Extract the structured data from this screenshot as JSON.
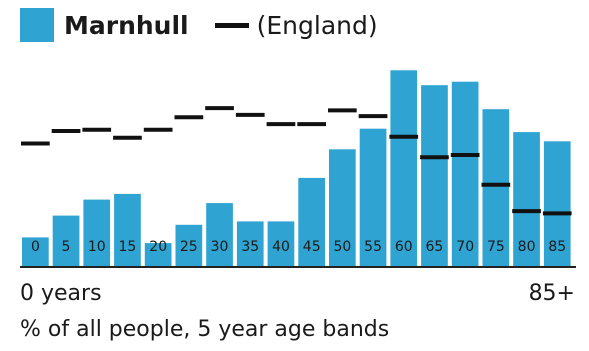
{
  "legend": {
    "series_label": "Marnhull",
    "reference_label": "(England)"
  },
  "colors": {
    "bar": "#2FA3D1",
    "reference": "#111111",
    "baseline": "#222222"
  },
  "axis": {
    "left_label": "0 years",
    "right_label": "85+"
  },
  "caption": "% of all people, 5 year age bands",
  "chart_data": {
    "type": "bar",
    "categories": [
      "0",
      "5",
      "10",
      "15",
      "20",
      "25",
      "30",
      "35",
      "40",
      "45",
      "50",
      "55",
      "60",
      "65",
      "70",
      "75",
      "80",
      "85"
    ],
    "series": [
      {
        "name": "Marnhull",
        "values": [
          2.5,
          4.4,
          5.8,
          6.3,
          2.0,
          3.6,
          5.5,
          3.9,
          3.9,
          7.7,
          10.2,
          12.0,
          17.1,
          15.8,
          16.1,
          13.7,
          11.7,
          10.9
        ]
      },
      {
        "name": "England",
        "values": [
          10.7,
          11.8,
          11.9,
          11.2,
          11.9,
          13.0,
          13.8,
          13.2,
          12.4,
          12.4,
          13.6,
          13.1,
          11.3,
          9.5,
          9.7,
          7.1,
          4.8,
          4.6
        ]
      }
    ],
    "xlabel": "% of all people, 5 year age bands",
    "ylim": [
      0,
      18
    ]
  }
}
